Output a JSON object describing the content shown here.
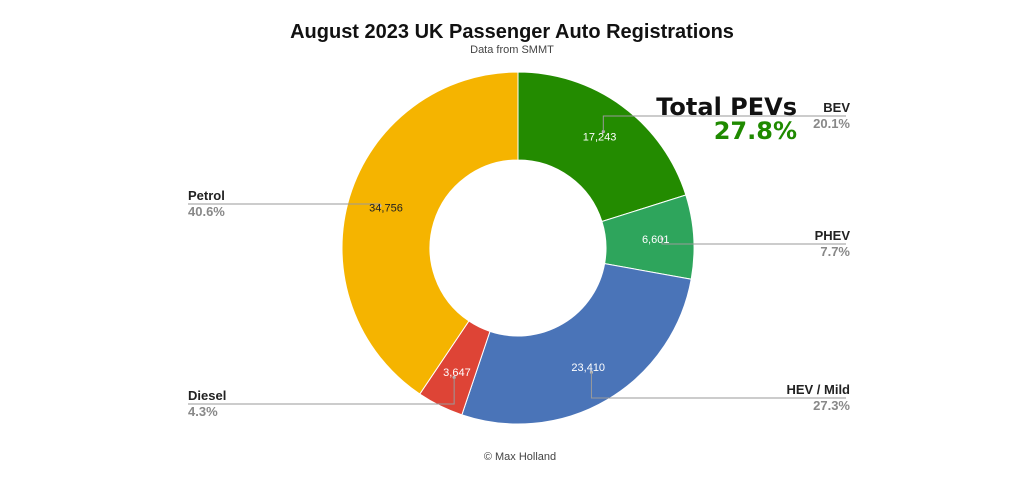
{
  "title": "August 2023 UK Passenger Auto Registrations",
  "subtitle": "Data from SMMT",
  "credit": "© Max Holland",
  "annotation": {
    "heading": "Total PEVs",
    "value": "27.8%",
    "value_color": "#1f8a00"
  },
  "chart_data": {
    "type": "pie",
    "donut": true,
    "start": "12 o'clock, clockwise",
    "slices": [
      {
        "label": "BEV",
        "value": 17243,
        "value_label": "17,243",
        "percent": "20.1%",
        "color": "#238b00",
        "value_color": "#ffffff"
      },
      {
        "label": "PHEV",
        "value": 6601,
        "value_label": "6,601",
        "percent": "7.7%",
        "color": "#2ea55c",
        "value_color": "#ffffff"
      },
      {
        "label": "HEV / Mild",
        "value": 23410,
        "value_label": "23,410",
        "percent": "27.3%",
        "color": "#4a74b8",
        "value_color": "#ffffff"
      },
      {
        "label": "Diesel",
        "value": 3647,
        "value_label": "3,647",
        "percent": "4.3%",
        "color": "#de4436",
        "value_color": "#ffffff"
      },
      {
        "label": "Petrol",
        "value": 34756,
        "value_label": "34,756",
        "percent": "40.6%",
        "color": "#f5b400",
        "value_color": "#222222"
      }
    ]
  }
}
